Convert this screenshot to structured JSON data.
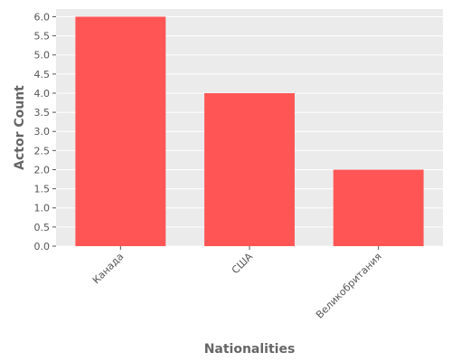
{
  "chart_data": {
    "type": "bar",
    "title": "",
    "xlabel": "Nationalities",
    "ylabel": "Actor Count",
    "categories": [
      "Канада",
      "США",
      "Великобритания"
    ],
    "values": [
      6,
      4,
      2
    ],
    "ylim": [
      0,
      6.2
    ],
    "yticks": [
      "0.0",
      "0.5",
      "1.0",
      "1.5",
      "2.0",
      "2.5",
      "3.0",
      "3.5",
      "4.0",
      "4.5",
      "5.0",
      "5.5",
      "6.0"
    ],
    "grid": true,
    "colors": {
      "bar": "#ff5555",
      "plot_background": "#ebebeb",
      "grid": "#ffffff"
    }
  }
}
